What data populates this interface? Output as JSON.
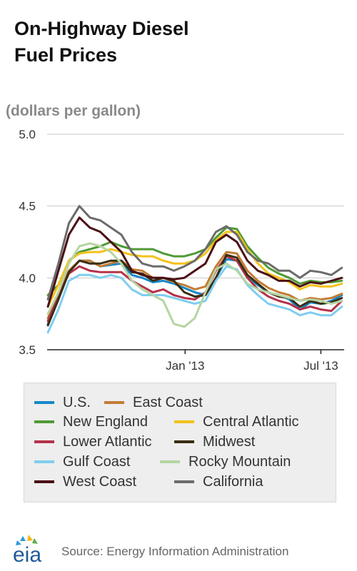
{
  "title_line1": "On-Highway Diesel",
  "title_line2": "Fuel Prices",
  "subtitle": "(dollars per gallon)",
  "source": "Source: Energy Information Administration",
  "logo_text": "eia",
  "colors": {
    "axis": "#222222",
    "grid": "#c8c8c8",
    "legend_bg": "#eeeeee"
  },
  "chart_data": {
    "type": "line",
    "title": "On-Highway Diesel Fuel Prices",
    "ylabel": "(dollars per gallon)",
    "ylim": [
      3.5,
      5.0
    ],
    "yticks": [
      3.5,
      4.0,
      4.5,
      5.0
    ],
    "ytick_labels": [
      "3.5",
      "4.0",
      "4.5",
      "5.0"
    ],
    "x_start": "2012-07",
    "x_end": "2013-08",
    "xticks": [
      "2013-01",
      "2013-07"
    ],
    "xtick_labels": [
      "Jan '13",
      "Jul '13"
    ],
    "grid": true,
    "legend_position": "bottom",
    "x": [
      "2012-07-02",
      "2012-07-16",
      "2012-07-30",
      "2012-08-13",
      "2012-08-27",
      "2012-09-10",
      "2012-09-24",
      "2012-10-08",
      "2012-10-22",
      "2012-11-05",
      "2012-11-19",
      "2012-12-03",
      "2012-12-17",
      "2012-12-31",
      "2013-01-14",
      "2013-01-28",
      "2013-02-11",
      "2013-02-25",
      "2013-03-11",
      "2013-03-25",
      "2013-04-08",
      "2013-04-22",
      "2013-05-06",
      "2013-05-20",
      "2013-06-03",
      "2013-06-17",
      "2013-07-01",
      "2013-07-15",
      "2013-07-29"
    ],
    "series": [
      {
        "name": "U.S.",
        "color": "#1588c8",
        "values": [
          3.68,
          3.85,
          4.05,
          4.12,
          4.12,
          4.08,
          4.09,
          4.1,
          4.02,
          4.0,
          3.97,
          3.98,
          3.96,
          3.93,
          3.9,
          3.88,
          4.0,
          4.13,
          4.12,
          4.0,
          3.95,
          3.9,
          3.88,
          3.85,
          3.78,
          3.83,
          3.82,
          3.84,
          3.88
        ]
      },
      {
        "name": "East Coast",
        "color": "#c37c35",
        "values": [
          3.72,
          3.9,
          4.05,
          4.12,
          4.12,
          4.08,
          4.1,
          4.12,
          4.06,
          4.05,
          4.0,
          4.0,
          3.97,
          3.95,
          3.92,
          3.94,
          4.08,
          4.18,
          4.17,
          4.05,
          3.98,
          3.93,
          3.9,
          3.88,
          3.84,
          3.86,
          3.85,
          3.86,
          3.89
        ]
      },
      {
        "name": "New England",
        "color": "#4f9a35",
        "values": [
          3.88,
          3.95,
          4.12,
          4.18,
          4.2,
          4.22,
          4.25,
          4.22,
          4.2,
          4.2,
          4.2,
          4.17,
          4.15,
          4.15,
          4.17,
          4.2,
          4.28,
          4.35,
          4.34,
          4.22,
          4.14,
          4.07,
          4.03,
          4.0,
          3.96,
          3.98,
          3.97,
          3.97,
          3.98
        ]
      },
      {
        "name": "Central Atlantic",
        "color": "#f4c21a",
        "values": [
          3.8,
          3.95,
          4.12,
          4.17,
          4.18,
          4.18,
          4.2,
          4.18,
          4.16,
          4.15,
          4.15,
          4.12,
          4.1,
          4.1,
          4.12,
          4.17,
          4.26,
          4.32,
          4.32,
          4.2,
          4.1,
          4.03,
          4.0,
          3.97,
          3.92,
          3.95,
          3.94,
          3.94,
          3.96
        ]
      },
      {
        "name": "Lower Atlantic",
        "color": "#b5324a",
        "values": [
          3.7,
          3.88,
          4.03,
          4.08,
          4.05,
          4.04,
          4.04,
          4.04,
          3.98,
          3.94,
          3.9,
          3.92,
          3.88,
          3.86,
          3.85,
          3.9,
          4.05,
          4.15,
          4.12,
          4.0,
          3.92,
          3.87,
          3.84,
          3.82,
          3.78,
          3.8,
          3.78,
          3.77,
          3.84
        ]
      },
      {
        "name": "Midwest",
        "color": "#3a2d12",
        "values": [
          3.67,
          3.85,
          4.04,
          4.12,
          4.1,
          4.1,
          4.12,
          4.12,
          4.04,
          4.03,
          3.98,
          4.0,
          3.98,
          3.9,
          3.87,
          3.88,
          4.0,
          4.16,
          4.14,
          4.02,
          3.96,
          3.9,
          3.87,
          3.86,
          3.8,
          3.84,
          3.82,
          3.83,
          3.86
        ]
      },
      {
        "name": "Gulf Coast",
        "color": "#7fcdf0",
        "values": [
          3.62,
          3.78,
          3.98,
          4.02,
          4.02,
          4.0,
          4.02,
          4.0,
          3.92,
          3.88,
          3.88,
          3.88,
          3.86,
          3.84,
          3.82,
          3.84,
          3.98,
          4.08,
          4.06,
          3.95,
          3.88,
          3.82,
          3.8,
          3.78,
          3.74,
          3.76,
          3.74,
          3.74,
          3.8
        ]
      },
      {
        "name": "Rocky Mountain",
        "color": "#b5d5a2",
        "values": [
          3.75,
          3.9,
          4.1,
          4.22,
          4.24,
          4.22,
          4.18,
          4.1,
          3.98,
          3.92,
          3.88,
          3.84,
          3.68,
          3.66,
          3.72,
          3.9,
          4.06,
          4.1,
          4.05,
          3.96,
          3.92,
          3.9,
          3.88,
          3.86,
          3.84,
          3.85,
          3.84,
          3.82,
          3.84
        ]
      },
      {
        "name": "West Coast",
        "color": "#4a0f14",
        "values": [
          3.8,
          4.05,
          4.3,
          4.42,
          4.35,
          4.32,
          4.25,
          4.18,
          4.05,
          4.02,
          4.0,
          4.0,
          3.99,
          4.0,
          4.05,
          4.1,
          4.25,
          4.3,
          4.25,
          4.12,
          4.05,
          4.02,
          3.98,
          3.98,
          3.94,
          3.97,
          3.96,
          3.98,
          4.0
        ]
      },
      {
        "name": "California",
        "color": "#6b6b6b",
        "values": [
          3.85,
          4.1,
          4.38,
          4.5,
          4.42,
          4.4,
          4.35,
          4.3,
          4.18,
          4.1,
          4.08,
          4.08,
          4.05,
          4.08,
          4.12,
          4.2,
          4.32,
          4.36,
          4.3,
          4.18,
          4.12,
          4.1,
          4.05,
          4.05,
          4.0,
          4.05,
          4.04,
          4.02,
          4.07
        ]
      }
    ]
  }
}
